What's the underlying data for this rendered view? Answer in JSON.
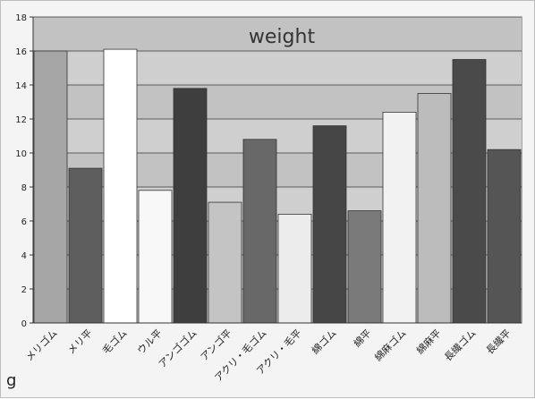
{
  "chart_data": {
    "type": "bar",
    "title": "weight",
    "ylabel": "g",
    "ylim": [
      0,
      18
    ],
    "yticks": [
      "0",
      "2",
      "4",
      "6",
      "8",
      "10",
      "12",
      "14",
      "16",
      "18"
    ],
    "grid": true,
    "categories": [
      "メリゴム",
      "メリ平",
      "毛ゴム",
      "ウル平",
      "アンゴゴム",
      "アンゴ平",
      "アクリ・毛ゴム",
      "アクリ・毛平",
      "綿ゴム",
      "綿平",
      "綿麻ゴム",
      "綿麻平",
      "長繊ゴム",
      "長繊平"
    ],
    "values": [
      16.0,
      9.1,
      16.1,
      7.8,
      13.8,
      7.1,
      10.8,
      6.4,
      11.6,
      6.6,
      12.4,
      13.5,
      15.5,
      10.2
    ],
    "colors": [
      "#a6a6a6",
      "#5e5e5e",
      "#ffffff",
      "#f8f8f8",
      "#3e3e3e",
      "#c4c4c4",
      "#686868",
      "#ececec",
      "#464646",
      "#7a7a7a",
      "#f2f2f2",
      "#bcbcbc",
      "#4a4a4a",
      "#555555"
    ]
  }
}
